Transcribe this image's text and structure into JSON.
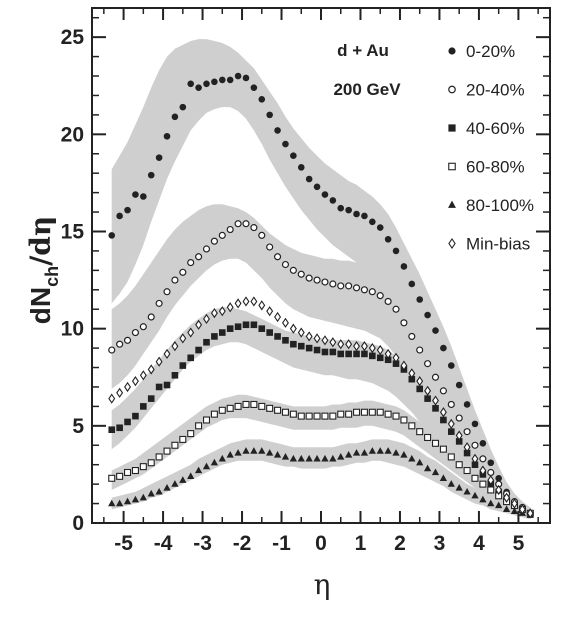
{
  "chart_data": {
    "type": "scatter",
    "xlabel": "η",
    "ylabel_main": "dN",
    "ylabel_sub": "ch",
    "ylabel_tail": "/dη",
    "xlim": [
      -5.8,
      5.8
    ],
    "ylim": [
      0,
      26.5
    ],
    "x_ticks": [
      -5,
      -4,
      -3,
      -2,
      -1,
      0,
      1,
      2,
      3,
      4,
      5
    ],
    "x_tick_labels": [
      "-5",
      "-4",
      "-3",
      "-2",
      "-1",
      "0",
      "1",
      "2",
      "3",
      "4",
      "5"
    ],
    "y_ticks": [
      0,
      5,
      10,
      15,
      20,
      25
    ],
    "y_tick_labels": [
      "0",
      "5",
      "10",
      "15",
      "20",
      "25"
    ],
    "annotations": [
      "d + Au",
      "200 GeV"
    ],
    "legend_position": "top-right",
    "x": [
      -5.3,
      -5.1,
      -4.9,
      -4.7,
      -4.5,
      -4.3,
      -4.1,
      -3.9,
      -3.7,
      -3.5,
      -3.3,
      -3.1,
      -2.9,
      -2.7,
      -2.5,
      -2.3,
      -2.1,
      -1.9,
      -1.7,
      -1.5,
      -1.3,
      -1.1,
      -0.9,
      -0.7,
      -0.5,
      -0.3,
      -0.1,
      0.1,
      0.3,
      0.5,
      0.7,
      0.9,
      1.1,
      1.3,
      1.5,
      1.7,
      1.9,
      2.1,
      2.3,
      2.5,
      2.7,
      2.9,
      3.1,
      3.3,
      3.5,
      3.7,
      3.9,
      4.1,
      4.3,
      4.5,
      4.7,
      4.9,
      5.1,
      5.3
    ],
    "series": [
      {
        "name": "0-20%",
        "marker": "filled-circle",
        "values": [
          14.8,
          15.8,
          16.1,
          16.9,
          16.8,
          17.9,
          18.8,
          19.9,
          20.9,
          21.4,
          22.6,
          22.4,
          22.6,
          22.7,
          22.8,
          22.8,
          23.0,
          22.9,
          22.4,
          21.8,
          21.0,
          20.2,
          19.5,
          18.9,
          18.3,
          17.7,
          17.3,
          16.9,
          16.6,
          16.2,
          16.1,
          15.9,
          15.8,
          15.5,
          15.2,
          14.6,
          14.0,
          13.2,
          12.3,
          11.5,
          10.7,
          9.9,
          9.0,
          8.1,
          7.1,
          6.1,
          5.1,
          4.1,
          3.1,
          2.3,
          1.6,
          1.1,
          0.8,
          0.5
        ],
        "band_low": [
          11.3,
          11.8,
          12.4,
          13.3,
          14.3,
          15.5,
          16.6,
          17.7,
          18.6,
          19.4,
          20.2,
          20.7,
          21.1,
          21.3,
          21.4,
          21.4,
          21.2,
          20.8,
          20.2,
          19.5,
          18.7,
          18.0,
          17.3,
          16.7,
          16.1,
          15.6,
          15.1,
          14.7,
          14.3,
          14.0,
          13.7,
          13.4,
          13.2,
          12.9,
          12.5,
          12.0,
          11.3,
          10.5,
          9.7,
          8.8,
          8.0,
          7.2,
          6.4,
          5.5,
          4.7,
          3.9,
          3.2,
          2.5,
          1.9,
          1.3,
          0.9,
          0.6,
          0.4,
          0.2
        ],
        "band_high": [
          18.2,
          18.9,
          19.6,
          20.5,
          21.4,
          22.4,
          23.3,
          24.0,
          24.4,
          24.6,
          24.8,
          24.9,
          24.9,
          24.8,
          24.7,
          24.5,
          24.2,
          23.8,
          23.4,
          22.8,
          22.2,
          21.6,
          20.9,
          20.3,
          19.8,
          19.3,
          18.9,
          18.5,
          18.2,
          17.9,
          17.6,
          17.4,
          17.1,
          16.8,
          16.4,
          15.9,
          15.2,
          14.4,
          13.6,
          12.8,
          11.9,
          11.0,
          10.1,
          9.1,
          8.0,
          6.9,
          5.8,
          4.8,
          3.8,
          2.9,
          2.1,
          1.5,
          1.1,
          0.8
        ]
      },
      {
        "name": "20-40%",
        "marker": "open-circle",
        "values": [
          8.9,
          9.2,
          9.4,
          9.8,
          10.1,
          10.6,
          11.3,
          11.9,
          12.5,
          12.9,
          13.4,
          13.7,
          14.1,
          14.5,
          14.8,
          15.1,
          15.4,
          15.4,
          15.2,
          14.8,
          14.2,
          13.7,
          13.3,
          13.0,
          12.8,
          12.6,
          12.5,
          12.4,
          12.3,
          12.2,
          12.2,
          12.1,
          12.0,
          11.9,
          11.7,
          11.4,
          11.0,
          10.3,
          9.6,
          8.9,
          8.2,
          7.5,
          6.8,
          6.1,
          5.4,
          4.7,
          4.0,
          3.3,
          2.6,
          2.0,
          1.5,
          1.1,
          0.8,
          0.5
        ],
        "band_low": [
          6.9,
          7.2,
          7.6,
          8.1,
          8.7,
          9.3,
          9.9,
          10.6,
          11.2,
          11.7,
          12.2,
          12.6,
          13.0,
          13.3,
          13.5,
          13.6,
          13.6,
          13.4,
          13.0,
          12.6,
          12.1,
          11.7,
          11.3,
          11.0,
          10.8,
          10.6,
          10.5,
          10.4,
          10.3,
          10.2,
          10.1,
          10.0,
          9.9,
          9.7,
          9.5,
          9.1,
          8.6,
          8.0,
          7.4,
          6.8,
          6.2,
          5.6,
          5.0,
          4.4,
          3.8,
          3.2,
          2.7,
          2.1,
          1.6,
          1.2,
          0.9,
          0.6,
          0.4,
          0.2
        ],
        "band_high": [
          11.0,
          11.3,
          11.7,
          12.2,
          12.8,
          13.4,
          14.0,
          14.6,
          15.1,
          15.5,
          15.8,
          16.1,
          16.3,
          16.4,
          16.4,
          16.3,
          16.2,
          16.0,
          15.7,
          15.3,
          14.9,
          14.6,
          14.3,
          14.1,
          13.9,
          13.8,
          13.7,
          13.6,
          13.6,
          13.5,
          13.5,
          13.4,
          13.3,
          13.2,
          13.0,
          12.7,
          12.3,
          11.7,
          11.0,
          10.3,
          9.6,
          8.9,
          8.2,
          7.4,
          6.6,
          5.8,
          5.0,
          4.2,
          3.4,
          2.7,
          2.0,
          1.5,
          1.1,
          0.8
        ]
      },
      {
        "name": "40-60%",
        "marker": "filled-square",
        "values": [
          4.8,
          4.9,
          5.2,
          5.5,
          6.0,
          6.4,
          7.0,
          7.1,
          7.6,
          8.1,
          8.5,
          8.9,
          9.3,
          9.6,
          9.8,
          10.0,
          10.1,
          10.2,
          10.2,
          10.0,
          9.8,
          9.6,
          9.4,
          9.2,
          9.1,
          9.0,
          8.9,
          8.8,
          8.8,
          8.7,
          8.7,
          8.7,
          8.7,
          8.6,
          8.5,
          8.4,
          8.2,
          7.9,
          7.4,
          6.9,
          6.4,
          5.9,
          5.3,
          4.7,
          4.2,
          3.6,
          3.0,
          2.5,
          2.0,
          1.6,
          1.2,
          0.9,
          0.7,
          0.5
        ],
        "band_low": [
          3.8,
          4.1,
          4.5,
          4.9,
          5.4,
          5.9,
          6.4,
          6.9,
          7.4,
          7.9,
          8.3,
          8.6,
          8.9,
          9.1,
          9.2,
          9.3,
          9.3,
          9.2,
          9.0,
          8.8,
          8.6,
          8.4,
          8.2,
          8.0,
          7.9,
          7.8,
          7.7,
          7.6,
          7.6,
          7.5,
          7.4,
          7.4,
          7.3,
          7.2,
          7.0,
          6.8,
          6.5,
          6.1,
          5.7,
          5.2,
          4.7,
          4.2,
          3.7,
          3.2,
          2.7,
          2.3,
          1.9,
          1.5,
          1.1,
          0.8,
          0.6,
          0.4,
          0.3,
          0.2
        ],
        "band_high": [
          5.8,
          6.1,
          6.5,
          6.9,
          7.4,
          7.9,
          8.4,
          8.9,
          9.4,
          9.8,
          10.2,
          10.5,
          10.8,
          11.0,
          11.1,
          11.1,
          11.0,
          10.9,
          10.7,
          10.5,
          10.3,
          10.1,
          9.9,
          9.8,
          9.7,
          9.6,
          9.5,
          9.5,
          9.4,
          9.4,
          9.4,
          9.4,
          9.3,
          9.2,
          9.1,
          8.9,
          8.6,
          8.3,
          7.9,
          7.4,
          6.9,
          6.4,
          5.8,
          5.2,
          4.6,
          4.0,
          3.4,
          2.8,
          2.3,
          1.8,
          1.4,
          1.0,
          0.7,
          0.5
        ]
      },
      {
        "name": "60-80%",
        "marker": "open-square",
        "values": [
          2.3,
          2.4,
          2.6,
          2.7,
          2.9,
          3.1,
          3.4,
          3.7,
          4.0,
          4.3,
          4.6,
          5.0,
          5.3,
          5.6,
          5.8,
          5.9,
          6.0,
          6.1,
          6.1,
          6.0,
          5.9,
          5.8,
          5.7,
          5.6,
          5.5,
          5.5,
          5.5,
          5.5,
          5.5,
          5.6,
          5.6,
          5.7,
          5.7,
          5.7,
          5.7,
          5.6,
          5.5,
          5.3,
          5.0,
          4.7,
          4.4,
          4.1,
          3.8,
          3.4,
          3.0,
          2.7,
          2.3,
          2.0,
          1.7,
          1.4,
          1.1,
          0.9,
          0.7,
          0.5
        ],
        "band_low": [
          1.7,
          1.9,
          2.1,
          2.3,
          2.5,
          2.8,
          3.1,
          3.4,
          3.7,
          4.0,
          4.3,
          4.6,
          4.9,
          5.1,
          5.3,
          5.4,
          5.4,
          5.4,
          5.3,
          5.2,
          5.1,
          5.0,
          4.9,
          4.8,
          4.8,
          4.8,
          4.8,
          4.8,
          4.8,
          4.9,
          4.9,
          4.9,
          5.0,
          5.0,
          4.9,
          4.8,
          4.7,
          4.5,
          4.2,
          3.9,
          3.6,
          3.3,
          3.0,
          2.7,
          2.4,
          2.1,
          1.8,
          1.5,
          1.2,
          1.0,
          0.8,
          0.6,
          0.4,
          0.3
        ],
        "band_high": [
          2.7,
          2.9,
          3.1,
          3.3,
          3.6,
          3.9,
          4.2,
          4.5,
          4.8,
          5.1,
          5.4,
          5.7,
          6.0,
          6.2,
          6.4,
          6.5,
          6.6,
          6.6,
          6.5,
          6.4,
          6.3,
          6.2,
          6.1,
          6.0,
          6.0,
          6.0,
          6.0,
          6.0,
          6.1,
          6.1,
          6.2,
          6.2,
          6.3,
          6.3,
          6.2,
          6.1,
          6.0,
          5.8,
          5.5,
          5.2,
          4.9,
          4.5,
          4.2,
          3.8,
          3.4,
          3.0,
          2.6,
          2.3,
          2.0,
          1.7,
          1.4,
          1.1,
          0.9,
          0.7
        ]
      },
      {
        "name": "80-100%",
        "marker": "filled-triangle",
        "values": [
          1.0,
          1.0,
          1.1,
          1.2,
          1.3,
          1.5,
          1.6,
          1.8,
          2.0,
          2.2,
          2.4,
          2.7,
          2.9,
          3.1,
          3.3,
          3.5,
          3.6,
          3.7,
          3.7,
          3.7,
          3.6,
          3.5,
          3.4,
          3.3,
          3.3,
          3.3,
          3.3,
          3.3,
          3.3,
          3.4,
          3.5,
          3.6,
          3.6,
          3.7,
          3.7,
          3.7,
          3.6,
          3.5,
          3.3,
          3.1,
          2.8,
          2.6,
          2.3,
          2.0,
          1.8,
          1.6,
          1.4,
          1.2,
          1.0,
          0.9,
          0.7,
          0.6,
          0.5,
          0.4
        ],
        "band_low": [
          0.7,
          0.8,
          0.9,
          1.0,
          1.1,
          1.3,
          1.4,
          1.6,
          1.8,
          2.0,
          2.2,
          2.4,
          2.6,
          2.8,
          3.0,
          3.1,
          3.2,
          3.2,
          3.2,
          3.2,
          3.1,
          3.0,
          2.9,
          2.9,
          2.8,
          2.8,
          2.8,
          2.8,
          2.9,
          2.9,
          3.0,
          3.1,
          3.1,
          3.2,
          3.2,
          3.1,
          3.0,
          2.9,
          2.7,
          2.5,
          2.3,
          2.1,
          1.9,
          1.6,
          1.4,
          1.2,
          1.0,
          0.9,
          0.7,
          0.6,
          0.5,
          0.4,
          0.3,
          0.2
        ],
        "band_high": [
          1.3,
          1.4,
          1.5,
          1.6,
          1.8,
          2.0,
          2.2,
          2.4,
          2.6,
          2.8,
          3.0,
          3.3,
          3.5,
          3.7,
          3.9,
          4.1,
          4.2,
          4.3,
          4.3,
          4.3,
          4.2,
          4.1,
          4.0,
          3.9,
          3.9,
          3.9,
          3.9,
          3.9,
          3.9,
          4.0,
          4.1,
          4.1,
          4.2,
          4.3,
          4.3,
          4.3,
          4.2,
          4.1,
          3.9,
          3.7,
          3.4,
          3.2,
          2.9,
          2.6,
          2.3,
          2.0,
          1.8,
          1.6,
          1.4,
          1.2,
          1.0,
          0.8,
          0.7,
          0.6
        ]
      },
      {
        "name": "Min-bias",
        "marker": "open-diamond",
        "values": [
          6.4,
          6.7,
          7.0,
          7.3,
          7.6,
          7.9,
          8.3,
          8.7,
          9.1,
          9.5,
          9.8,
          10.2,
          10.5,
          10.8,
          10.9,
          11.1,
          11.3,
          11.4,
          11.4,
          11.2,
          10.9,
          10.6,
          10.3,
          10.0,
          9.8,
          9.6,
          9.5,
          9.4,
          9.3,
          9.2,
          9.2,
          9.1,
          9.1,
          9.0,
          8.9,
          8.7,
          8.5,
          8.1,
          7.7,
          7.3,
          6.8,
          6.3,
          5.7,
          5.1,
          4.5,
          3.9,
          3.3,
          2.7,
          2.2,
          1.7,
          1.3,
          1.0,
          0.7,
          0.5
        ]
      }
    ]
  }
}
